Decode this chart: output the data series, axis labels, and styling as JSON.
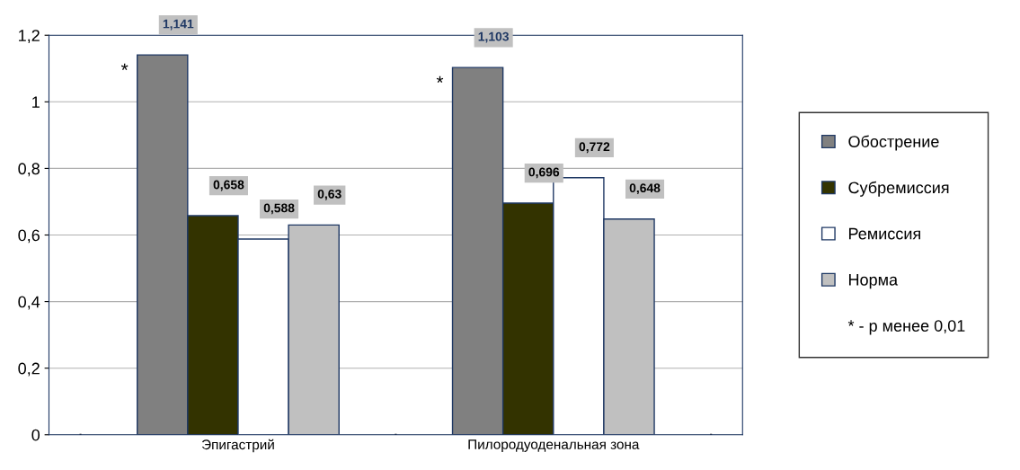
{
  "chart_data": {
    "type": "bar",
    "categories": [
      "Эпигастрий",
      "Пилородуоденальная зона"
    ],
    "series": [
      {
        "name": "Обострение",
        "color": "#808080",
        "values": [
          1.141,
          1.103
        ],
        "value_labels": [
          "1,141",
          "1,103"
        ]
      },
      {
        "name": "Субремиссия",
        "color": "#333300",
        "values": [
          0.658,
          0.696
        ],
        "value_labels": [
          "0,658",
          "0,696"
        ]
      },
      {
        "name": "Ремиссия",
        "color": "#ffffff",
        "values": [
          0.588,
          0.772
        ],
        "value_labels": [
          "0,588",
          "0,772"
        ]
      },
      {
        "name": "Норма",
        "color": "#c0c0c0",
        "values": [
          0.63,
          0.648
        ],
        "value_labels": [
          "0,63",
          "0,648"
        ]
      }
    ],
    "ylim": [
      0,
      1.2
    ],
    "yticks": [
      0,
      {
        "value": 0.2,
        "label": "0,2"
      },
      {
        "value": 0.4,
        "label": "0,4"
      },
      {
        "value": 0.6,
        "label": "0,6"
      },
      {
        "value": 0.8,
        "label": "0,8"
      },
      1,
      {
        "value": 1.2,
        "label": "1,2"
      }
    ],
    "grid": "y",
    "legend": "right",
    "annotations": [
      "*",
      "*",
      "* - р менее 0,01"
    ]
  }
}
